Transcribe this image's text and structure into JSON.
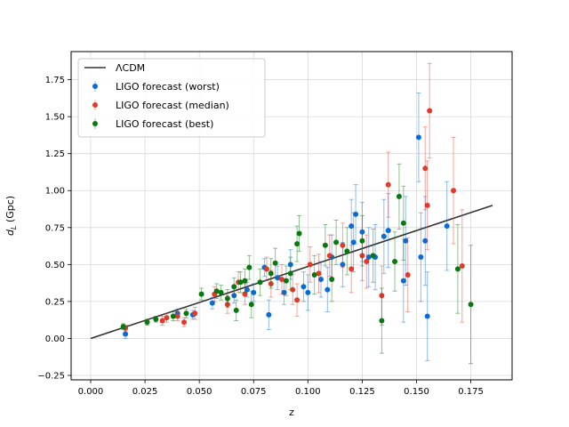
{
  "chart_data": {
    "type": "scatter",
    "title": "",
    "xlabel": "z",
    "ylabel_main": "d",
    "ylabel_sub": "L",
    "ylabel_unit": " (Gpc)",
    "xlim": [
      -0.009,
      0.194
    ],
    "ylim": [
      -0.28,
      1.94
    ],
    "xticks": [
      0.0,
      0.025,
      0.05,
      0.075,
      0.1,
      0.125,
      0.15,
      0.175
    ],
    "xtick_labels": [
      "0.000",
      "0.025",
      "0.050",
      "0.075",
      "0.100",
      "0.125",
      "0.150",
      "0.175"
    ],
    "yticks": [
      -0.25,
      0.0,
      0.25,
      0.5,
      0.75,
      1.0,
      1.25,
      1.5,
      1.75
    ],
    "ytick_labels": [
      "−0.25",
      "0.00",
      "0.25",
      "0.50",
      "0.75",
      "1.00",
      "1.25",
      "1.50",
      "1.75"
    ],
    "grid": true,
    "legend_position": "upper-left",
    "model_line": {
      "name": "ΛCDM",
      "color": "#333333",
      "x": [
        0.0,
        0.185
      ],
      "y": [
        0.0,
        0.9
      ]
    },
    "series": [
      {
        "name": "LIGO forecast (worst)",
        "color": "#0b6bd6",
        "points": [
          {
            "x": 0.016,
            "y": 0.03,
            "err": 0.03
          },
          {
            "x": 0.04,
            "y": 0.17,
            "err": 0.03
          },
          {
            "x": 0.047,
            "y": 0.16,
            "err": 0.03
          },
          {
            "x": 0.056,
            "y": 0.24,
            "err": 0.04
          },
          {
            "x": 0.066,
            "y": 0.29,
            "err": 0.05
          },
          {
            "x": 0.072,
            "y": 0.33,
            "err": 0.05
          },
          {
            "x": 0.075,
            "y": 0.31,
            "err": 0.06
          },
          {
            "x": 0.08,
            "y": 0.48,
            "err": 0.06
          },
          {
            "x": 0.082,
            "y": 0.16,
            "err": 0.1
          },
          {
            "x": 0.086,
            "y": 0.41,
            "err": 0.08
          },
          {
            "x": 0.089,
            "y": 0.31,
            "err": 0.08
          },
          {
            "x": 0.092,
            "y": 0.5,
            "err": 0.1
          },
          {
            "x": 0.098,
            "y": 0.35,
            "err": 0.1
          },
          {
            "x": 0.1,
            "y": 0.31,
            "err": 0.12
          },
          {
            "x": 0.106,
            "y": 0.4,
            "err": 0.12
          },
          {
            "x": 0.109,
            "y": 0.33,
            "err": 0.15
          },
          {
            "x": 0.111,
            "y": 0.55,
            "err": 0.15
          },
          {
            "x": 0.116,
            "y": 0.5,
            "err": 0.15
          },
          {
            "x": 0.12,
            "y": 0.76,
            "err": 0.18
          },
          {
            "x": 0.121,
            "y": 0.65,
            "err": 0.2
          },
          {
            "x": 0.122,
            "y": 0.84,
            "err": 0.2
          },
          {
            "x": 0.125,
            "y": 0.72,
            "err": 0.2
          },
          {
            "x": 0.128,
            "y": 0.55,
            "err": 0.2
          },
          {
            "x": 0.131,
            "y": 0.55,
            "err": 0.22
          },
          {
            "x": 0.135,
            "y": 0.69,
            "err": 0.25
          },
          {
            "x": 0.137,
            "y": 0.73,
            "err": 0.25
          },
          {
            "x": 0.144,
            "y": 0.39,
            "err": 0.28
          },
          {
            "x": 0.145,
            "y": 0.66,
            "err": 0.3
          },
          {
            "x": 0.151,
            "y": 1.36,
            "err": 0.3
          },
          {
            "x": 0.152,
            "y": 0.55,
            "err": 0.3
          },
          {
            "x": 0.154,
            "y": 0.66,
            "err": 0.3
          },
          {
            "x": 0.155,
            "y": 0.15,
            "err": 0.3
          },
          {
            "x": 0.164,
            "y": 0.76,
            "err": 0.3
          }
        ]
      },
      {
        "name": "LIGO forecast (median)",
        "color": "#e03a2a",
        "points": [
          {
            "x": 0.016,
            "y": 0.07,
            "err": 0.02
          },
          {
            "x": 0.033,
            "y": 0.12,
            "err": 0.03
          },
          {
            "x": 0.035,
            "y": 0.14,
            "err": 0.03
          },
          {
            "x": 0.04,
            "y": 0.15,
            "err": 0.03
          },
          {
            "x": 0.043,
            "y": 0.11,
            "err": 0.03
          },
          {
            "x": 0.048,
            "y": 0.17,
            "err": 0.04
          },
          {
            "x": 0.057,
            "y": 0.3,
            "err": 0.05
          },
          {
            "x": 0.063,
            "y": 0.23,
            "err": 0.06
          },
          {
            "x": 0.068,
            "y": 0.38,
            "err": 0.07
          },
          {
            "x": 0.071,
            "y": 0.3,
            "err": 0.07
          },
          {
            "x": 0.081,
            "y": 0.47,
            "err": 0.08
          },
          {
            "x": 0.083,
            "y": 0.37,
            "err": 0.09
          },
          {
            "x": 0.088,
            "y": 0.4,
            "err": 0.1
          },
          {
            "x": 0.093,
            "y": 0.33,
            "err": 0.1
          },
          {
            "x": 0.095,
            "y": 0.26,
            "err": 0.11
          },
          {
            "x": 0.101,
            "y": 0.5,
            "err": 0.12
          },
          {
            "x": 0.105,
            "y": 0.44,
            "err": 0.13
          },
          {
            "x": 0.11,
            "y": 0.56,
            "err": 0.14
          },
          {
            "x": 0.116,
            "y": 0.63,
            "err": 0.15
          },
          {
            "x": 0.12,
            "y": 0.47,
            "err": 0.16
          },
          {
            "x": 0.125,
            "y": 0.56,
            "err": 0.17
          },
          {
            "x": 0.127,
            "y": 0.52,
            "err": 0.18
          },
          {
            "x": 0.134,
            "y": 0.29,
            "err": 0.2
          },
          {
            "x": 0.137,
            "y": 1.04,
            "err": 0.22
          },
          {
            "x": 0.146,
            "y": 0.43,
            "err": 0.25
          },
          {
            "x": 0.154,
            "y": 1.15,
            "err": 0.28
          },
          {
            "x": 0.155,
            "y": 0.9,
            "err": 0.3
          },
          {
            "x": 0.156,
            "y": 1.54,
            "err": 0.32
          },
          {
            "x": 0.167,
            "y": 1.0,
            "err": 0.36
          },
          {
            "x": 0.171,
            "y": 0.49,
            "err": 0.38
          }
        ]
      },
      {
        "name": "LIGO forecast (best)",
        "color": "#08780f",
        "points": [
          {
            "x": 0.015,
            "y": 0.08,
            "err": 0.02
          },
          {
            "x": 0.026,
            "y": 0.11,
            "err": 0.02
          },
          {
            "x": 0.03,
            "y": 0.13,
            "err": 0.02
          },
          {
            "x": 0.038,
            "y": 0.15,
            "err": 0.03
          },
          {
            "x": 0.044,
            "y": 0.17,
            "err": 0.03
          },
          {
            "x": 0.051,
            "y": 0.3,
            "err": 0.04
          },
          {
            "x": 0.058,
            "y": 0.32,
            "err": 0.05
          },
          {
            "x": 0.06,
            "y": 0.31,
            "err": 0.05
          },
          {
            "x": 0.063,
            "y": 0.27,
            "err": 0.06
          },
          {
            "x": 0.066,
            "y": 0.35,
            "err": 0.06
          },
          {
            "x": 0.067,
            "y": 0.19,
            "err": 0.07
          },
          {
            "x": 0.069,
            "y": 0.38,
            "err": 0.07
          },
          {
            "x": 0.071,
            "y": 0.39,
            "err": 0.08
          },
          {
            "x": 0.073,
            "y": 0.48,
            "err": 0.08
          },
          {
            "x": 0.074,
            "y": 0.23,
            "err": 0.09
          },
          {
            "x": 0.078,
            "y": 0.38,
            "err": 0.09
          },
          {
            "x": 0.083,
            "y": 0.44,
            "err": 0.1
          },
          {
            "x": 0.085,
            "y": 0.51,
            "err": 0.1
          },
          {
            "x": 0.09,
            "y": 0.39,
            "err": 0.1
          },
          {
            "x": 0.092,
            "y": 0.44,
            "err": 0.11
          },
          {
            "x": 0.095,
            "y": 0.64,
            "err": 0.12
          },
          {
            "x": 0.096,
            "y": 0.71,
            "err": 0.12
          },
          {
            "x": 0.103,
            "y": 0.43,
            "err": 0.13
          },
          {
            "x": 0.108,
            "y": 0.63,
            "err": 0.14
          },
          {
            "x": 0.111,
            "y": 0.4,
            "err": 0.15
          },
          {
            "x": 0.113,
            "y": 0.65,
            "err": 0.15
          },
          {
            "x": 0.118,
            "y": 0.59,
            "err": 0.16
          },
          {
            "x": 0.125,
            "y": 0.66,
            "err": 0.17
          },
          {
            "x": 0.13,
            "y": 0.56,
            "err": 0.18
          },
          {
            "x": 0.134,
            "y": 0.12,
            "err": 0.22
          },
          {
            "x": 0.14,
            "y": 0.52,
            "err": 0.2
          },
          {
            "x": 0.142,
            "y": 0.96,
            "err": 0.22
          },
          {
            "x": 0.144,
            "y": 0.78,
            "err": 0.25
          },
          {
            "x": 0.169,
            "y": 0.47,
            "err": 0.3
          },
          {
            "x": 0.175,
            "y": 0.23,
            "err": 0.4
          }
        ]
      }
    ]
  }
}
